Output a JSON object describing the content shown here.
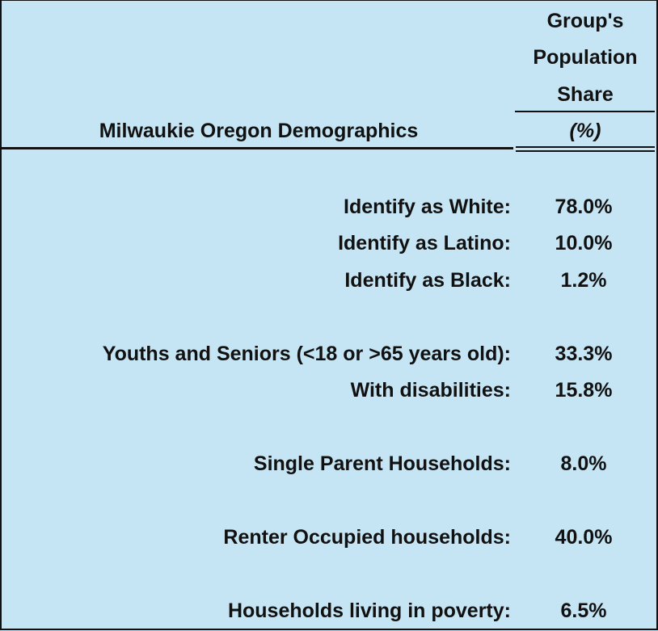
{
  "header": {
    "title": "Milwaukie Oregon Demographics",
    "column_lines": [
      "Group's",
      "Population",
      "Share"
    ],
    "unit": "(%)"
  },
  "rows": [
    {
      "label": "Identify as White:",
      "value": "78.0%"
    },
    {
      "label": "Identify as Latino:",
      "value": "10.0%"
    },
    {
      "label": "Identify as Black:",
      "value": "1.2%"
    },
    {
      "label": "Youths and Seniors (<18 or >65 years old):",
      "value": "33.3%"
    },
    {
      "label": "With disabilities:",
      "value": "15.8%"
    },
    {
      "label": "Single Parent Households:",
      "value": "8.0%"
    },
    {
      "label": "Renter Occupied households:",
      "value": "40.0%"
    },
    {
      "label": "Households living in poverty:",
      "value": "6.5%"
    }
  ]
}
